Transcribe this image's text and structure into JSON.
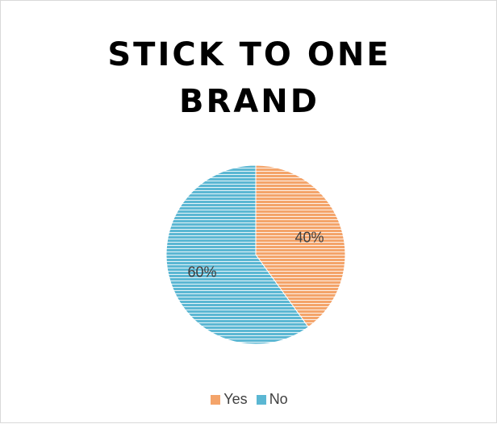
{
  "chart_data": {
    "type": "pie",
    "title_lines": [
      "STICK TO ONE",
      "BRAND"
    ],
    "categories": [
      "Yes",
      "No"
    ],
    "values": [
      40,
      60
    ],
    "data_labels": [
      "40%",
      "60%"
    ],
    "colors": [
      "#f4a46a",
      "#5bb7d3"
    ],
    "hatch": "horizontal-lines",
    "start_angle_deg": 0,
    "direction": "clockwise",
    "legend_position": "bottom"
  }
}
